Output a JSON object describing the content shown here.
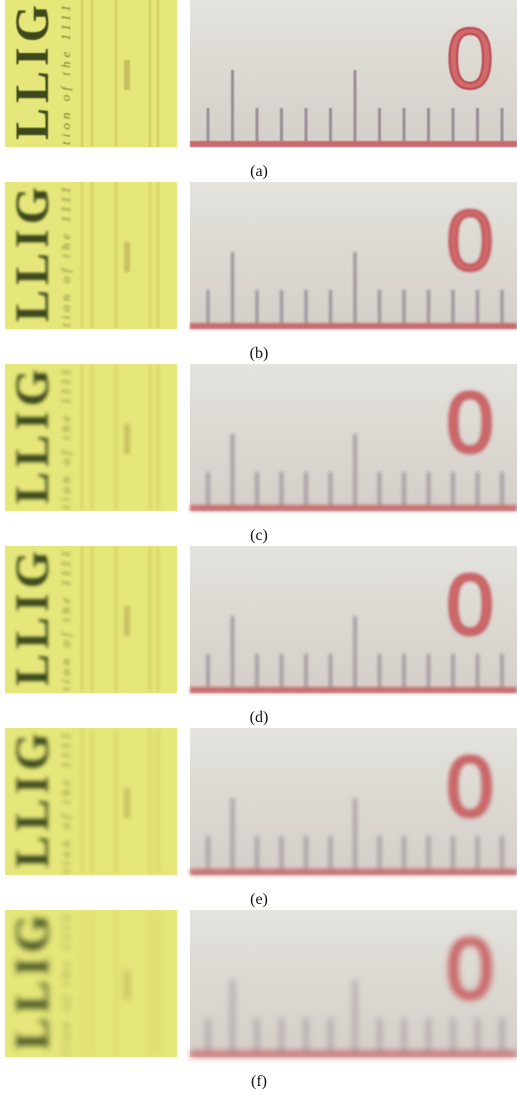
{
  "figure": {
    "book_text": "LLIG",
    "book_subtext": "tion of the 1111",
    "ruler_digit": "0",
    "panels": [
      {
        "label": "(a)"
      },
      {
        "label": "(b)"
      },
      {
        "label": "(c)"
      },
      {
        "label": "(d)"
      },
      {
        "label": "(e)"
      },
      {
        "label": "(f)"
      }
    ]
  }
}
